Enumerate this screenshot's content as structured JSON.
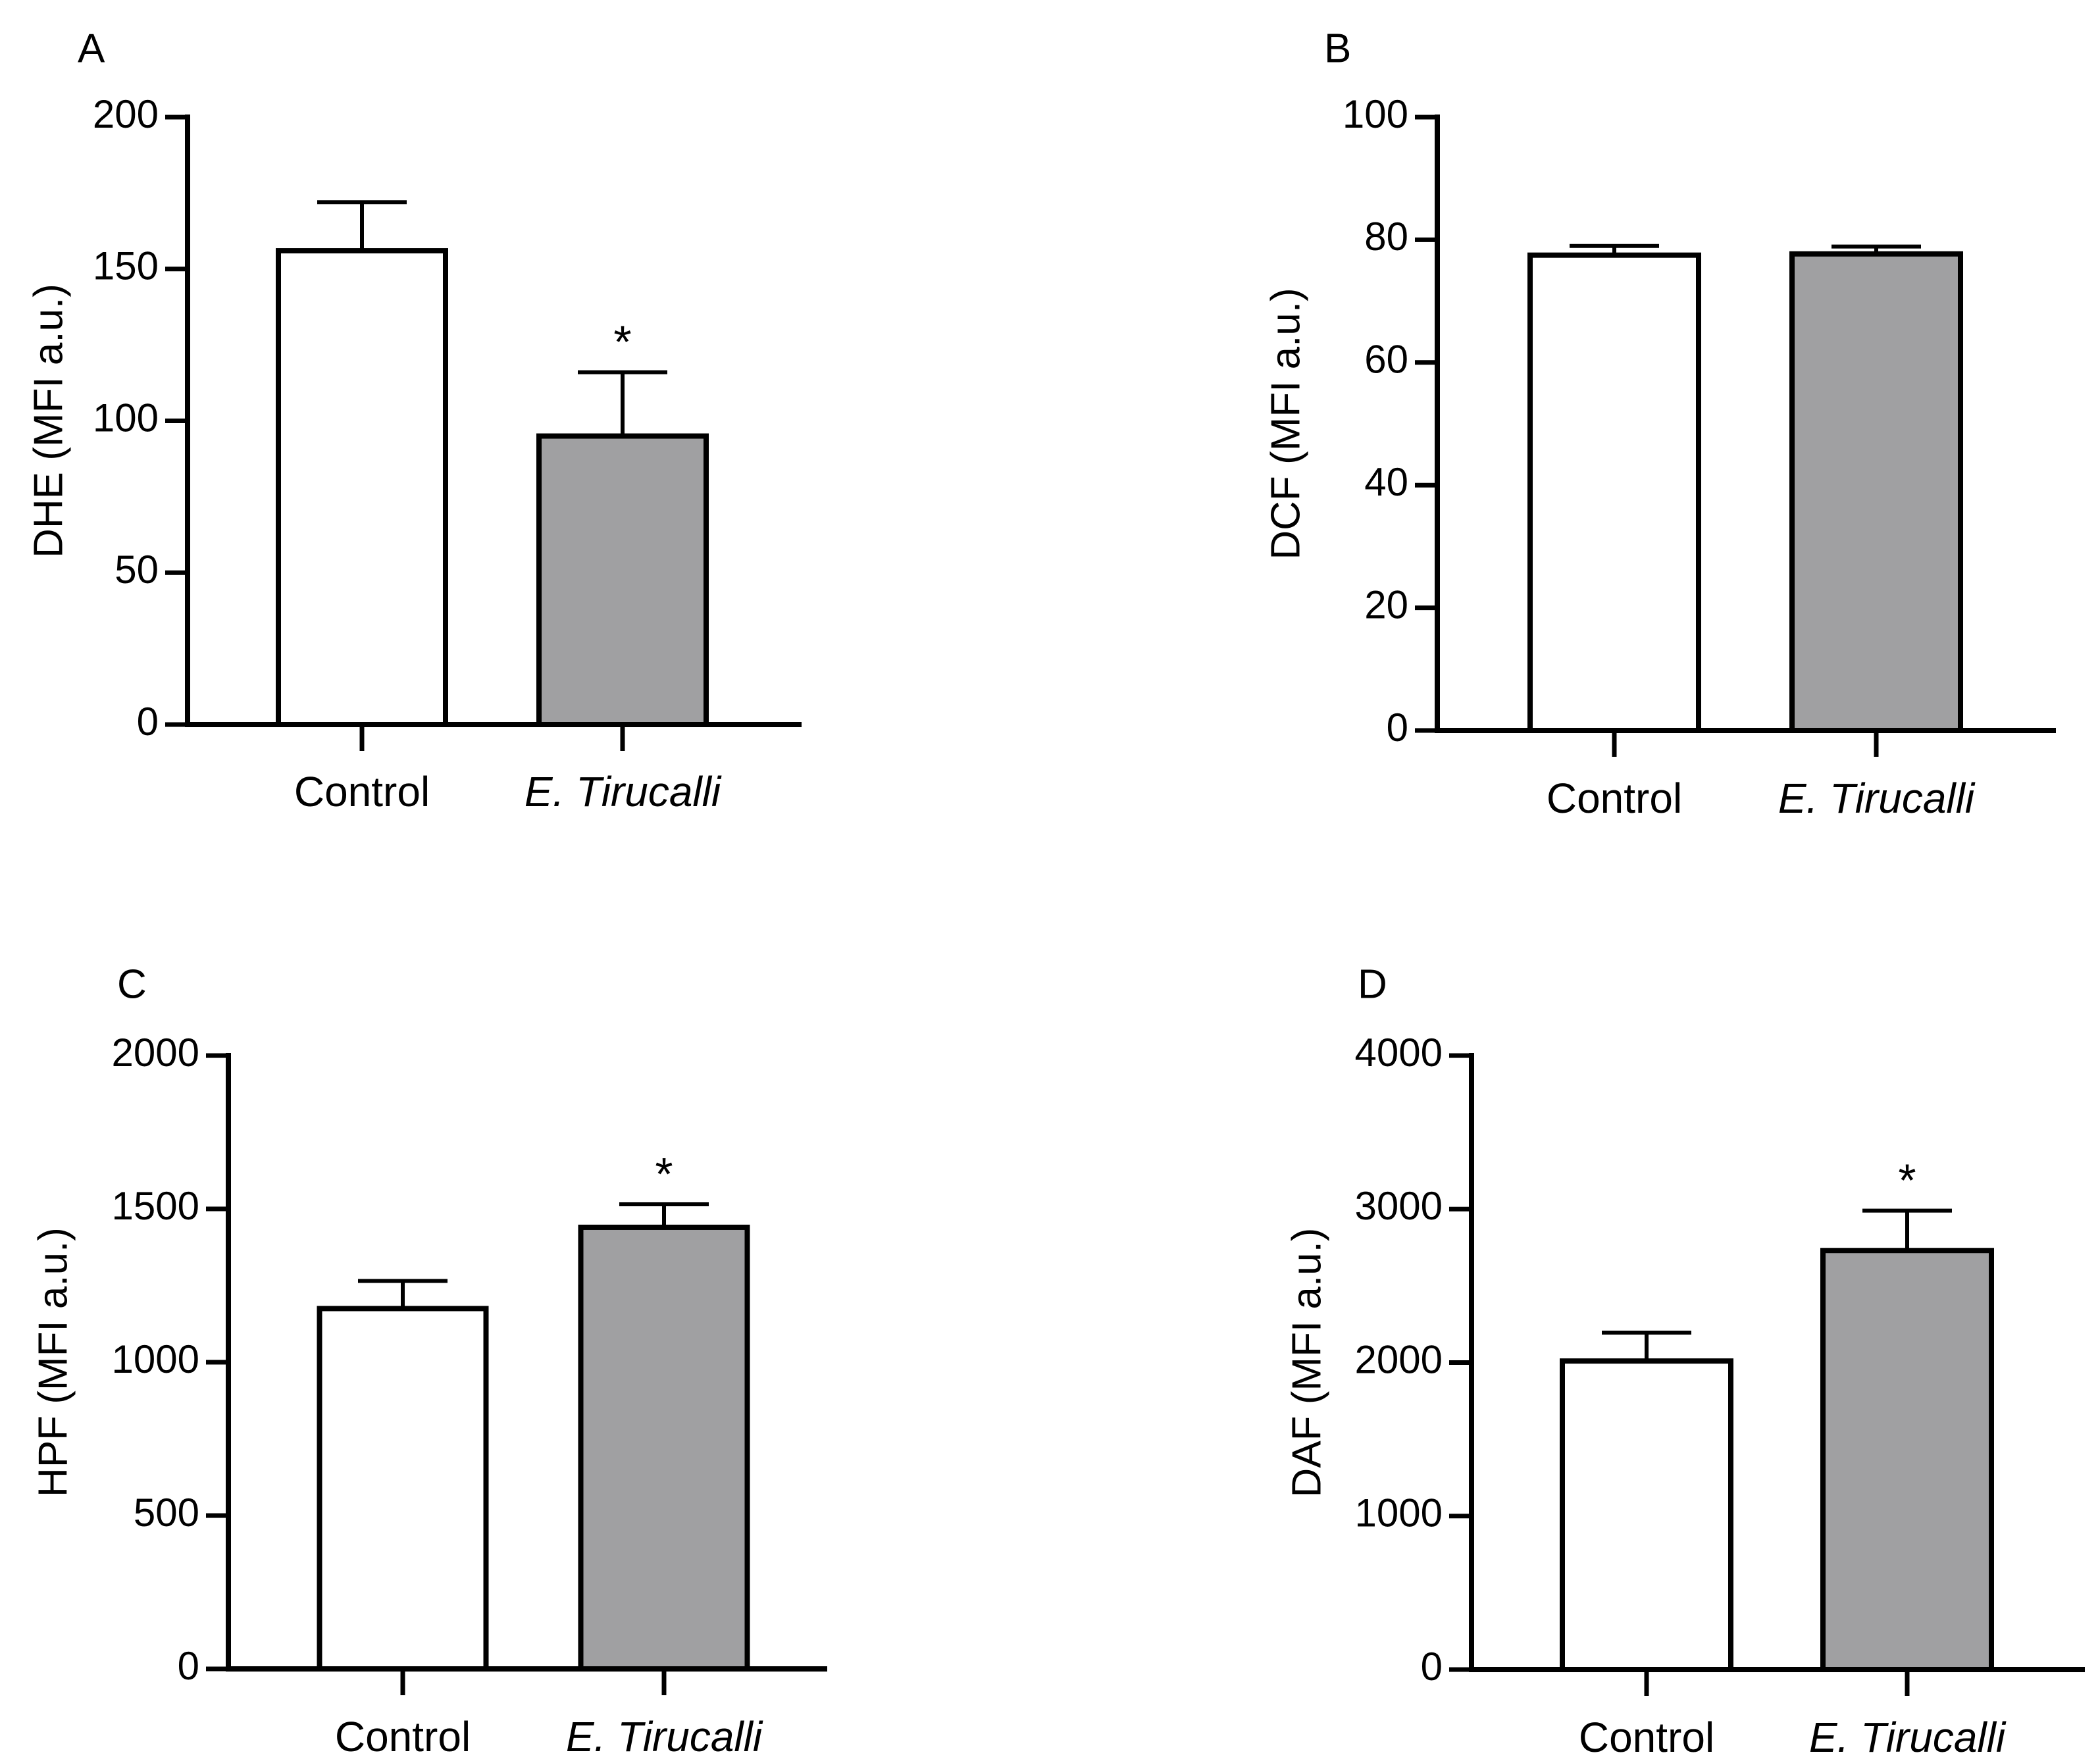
{
  "chart_data": [
    {
      "panel": "A",
      "type": "bar",
      "ylabel": "DHE (MFI a.u.)",
      "categories": [
        "Control",
        "E. Tirucalli"
      ],
      "category_italic": [
        false,
        true
      ],
      "values": [
        156,
        95
      ],
      "errors": [
        16,
        21
      ],
      "bar_colors": [
        "#ffffff",
        "#a0a0a2"
      ],
      "ylim": [
        0,
        200
      ],
      "yticks": [
        0,
        50,
        100,
        150,
        200
      ],
      "significance": [
        "",
        "*"
      ]
    },
    {
      "panel": "B",
      "type": "bar",
      "ylabel": "DCF (MFI a.u.)",
      "categories": [
        "Control",
        "E. Tirucalli"
      ],
      "category_italic": [
        false,
        true
      ],
      "values": [
        77.5,
        77.7
      ],
      "errors": [
        1.5,
        1.2
      ],
      "bar_colors": [
        "#ffffff",
        "#a0a0a2"
      ],
      "ylim": [
        0,
        100
      ],
      "yticks": [
        0,
        20,
        40,
        60,
        80,
        100
      ],
      "significance": [
        "",
        ""
      ]
    },
    {
      "panel": "C",
      "type": "bar",
      "ylabel": "HPF (MFI a.u.)",
      "categories": [
        "Control",
        "E. Tirucalli"
      ],
      "category_italic": [
        false,
        true
      ],
      "values": [
        1175,
        1440
      ],
      "errors": [
        90,
        75
      ],
      "bar_colors": [
        "#ffffff",
        "#a0a0a2"
      ],
      "ylim": [
        0,
        2000
      ],
      "yticks": [
        0,
        500,
        1000,
        1500,
        2000
      ],
      "significance": [
        "",
        "*"
      ]
    },
    {
      "panel": "D",
      "type": "bar",
      "ylabel": "DAF  (MFI a.u.)",
      "categories": [
        "Control",
        "E. Tirucalli"
      ],
      "category_italic": [
        false,
        true
      ],
      "values": [
        2010,
        2730
      ],
      "errors": [
        185,
        260
      ],
      "bar_colors": [
        "#ffffff",
        "#a0a0a2"
      ],
      "ylim": [
        0,
        4000
      ],
      "yticks": [
        0,
        1000,
        2000,
        3000,
        4000
      ],
      "significance": [
        "",
        "*"
      ]
    }
  ]
}
